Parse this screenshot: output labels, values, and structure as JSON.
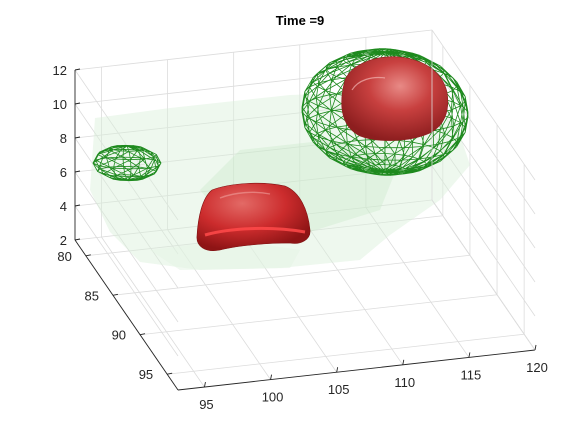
{
  "chart_data": {
    "type": "isosurface-3d",
    "title": "Time =9",
    "xlabel": "",
    "ylabel": "",
    "zlabel": "",
    "x_ticks": [
      "95",
      "100",
      "105",
      "110",
      "115",
      "120"
    ],
    "y_ticks": [
      "80",
      "85",
      "90",
      "95"
    ],
    "z_ticks": [
      "2",
      "4",
      "6",
      "8",
      "10",
      "12"
    ],
    "xlim": [
      93,
      120
    ],
    "ylim": [
      78,
      97
    ],
    "zlim": [
      2,
      12
    ],
    "grid": true,
    "surfaces": [
      {
        "kind": "solid",
        "color": "#d9262b",
        "center": [
          101,
          87,
          3.5
        ]
      },
      {
        "kind": "solid",
        "color": "#d9262b",
        "center": [
          114,
          81,
          10
        ]
      },
      {
        "kind": "wireframe",
        "color": "#1e8a1e",
        "center": [
          113,
          81,
          9
        ]
      },
      {
        "kind": "wireframe",
        "color": "#1e8a1e",
        "center": [
          95,
          80,
          7
        ]
      },
      {
        "kind": "translucent",
        "color": "#cfeacf",
        "center": [
          105,
          85,
          3
        ]
      }
    ]
  }
}
